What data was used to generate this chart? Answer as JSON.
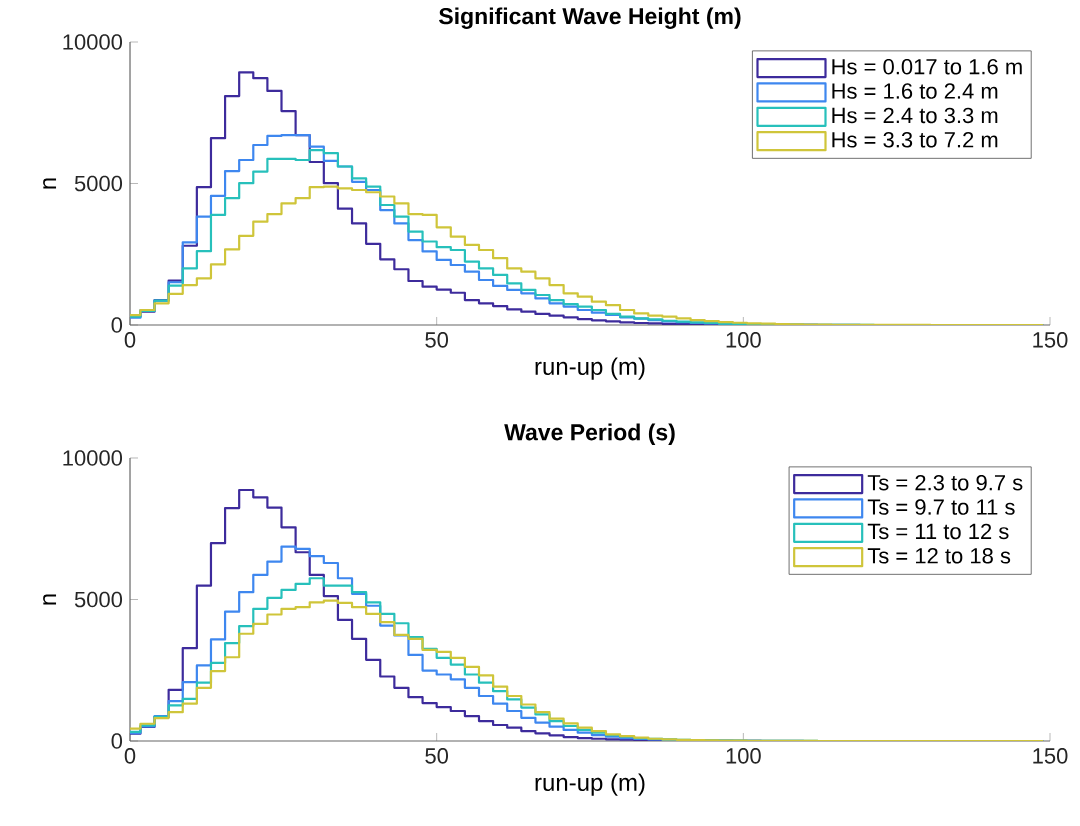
{
  "chart_data": [
    {
      "type": "histogram",
      "title": "Significant Wave Height (m)",
      "xlabel": "run-up (m)",
      "ylabel": "n",
      "bins": [
        -0.6,
        1.7,
        4,
        6.3,
        8.6,
        10.9,
        13.2,
        15.5,
        17.8,
        20.1,
        22.4,
        24.7,
        27,
        29.3,
        31.6,
        33.9,
        36.2,
        38.5,
        40.8,
        43.1,
        45.4,
        47.7,
        50,
        52.3,
        54.6,
        56.9,
        59.2,
        61.5,
        63.8,
        66.1,
        68.4,
        70.7,
        73,
        75.3,
        77.6,
        79.9,
        82.2,
        84.5,
        86.8,
        89.1,
        91.4,
        93.7,
        96,
        98.3,
        100.6,
        102.9,
        105.2,
        107.5,
        109.8,
        112.1,
        114.4,
        116.7,
        119,
        121.3,
        123.6,
        125.9,
        128.2,
        130.5,
        132.8,
        135.1,
        137.4,
        139.7,
        142,
        144.3,
        146.6,
        148.9
      ],
      "series": [
        {
          "name": "Hs = 0.017 to 1.6 m",
          "color": "#3d2b9c",
          "values": [
            295,
            470,
            880,
            1570,
            2800,
            4870,
            6600,
            8090,
            8930,
            8720,
            8270,
            7560,
            6710,
            5760,
            5010,
            4110,
            3590,
            2870,
            2320,
            1970,
            1555,
            1355,
            1250,
            1140,
            880,
            765,
            670,
            555,
            470,
            390,
            330,
            270,
            210,
            165,
            130,
            95,
            70,
            55,
            40,
            30,
            22,
            16,
            11,
            8,
            5,
            4,
            3,
            2,
            1,
            0,
            0,
            0,
            0,
            0,
            0,
            0,
            0,
            0,
            0,
            0,
            0,
            0,
            0,
            0,
            0
          ]
        },
        {
          "name": "Hs = 1.6 to 2.4 m",
          "color": "#3e87ef",
          "values": [
            260,
            530,
            860,
            1510,
            2920,
            3830,
            4560,
            5440,
            5830,
            6360,
            6680,
            6710,
            6710,
            6300,
            5800,
            5600,
            5060,
            4770,
            4060,
            3590,
            3000,
            2600,
            2300,
            2120,
            1885,
            1590,
            1380,
            1240,
            1120,
            940,
            765,
            650,
            530,
            435,
            355,
            270,
            225,
            175,
            130,
            100,
            75,
            55,
            40,
            30,
            22,
            16,
            11,
            8,
            5,
            3,
            2,
            1,
            0,
            0,
            0,
            0,
            0,
            0,
            0,
            0,
            0,
            0,
            0,
            0,
            0
          ]
        },
        {
          "name": "Hs = 2.4 to 3.3 m",
          "color": "#27c0bb",
          "values": [
            295,
            495,
            860,
            1390,
            2000,
            2610,
            3890,
            4480,
            5010,
            5420,
            5870,
            5870,
            5830,
            6180,
            6070,
            5600,
            5180,
            4890,
            4240,
            3830,
            3300,
            2950,
            2750,
            2650,
            2240,
            2000,
            1770,
            1470,
            1240,
            1060,
            880,
            740,
            650,
            530,
            390,
            295,
            235,
            200,
            150,
            120,
            90,
            70,
            50,
            38,
            28,
            20,
            14,
            10,
            7,
            5,
            3,
            2,
            1,
            0,
            0,
            0,
            0,
            0,
            0,
            0,
            0,
            0,
            0,
            0,
            0
          ]
        },
        {
          "name": "Hs = 3.3 to 7.2 m",
          "color": "#cfc53a",
          "values": [
            350,
            530,
            765,
            1100,
            1410,
            1650,
            2140,
            2670,
            3150,
            3650,
            3920,
            4300,
            4480,
            4870,
            4890,
            4830,
            4770,
            4690,
            4540,
            4300,
            3920,
            3890,
            3450,
            3120,
            2830,
            2650,
            2360,
            2000,
            1885,
            1650,
            1410,
            1120,
            1000,
            825,
            700,
            530,
            410,
            330,
            295,
            235,
            175,
            140,
            105,
            80,
            60,
            45,
            35,
            25,
            18,
            12,
            8,
            6,
            4,
            3,
            2,
            1,
            1,
            0,
            0,
            0,
            0,
            0,
            0,
            0,
            0
          ]
        }
      ],
      "xlim": [
        0,
        150
      ],
      "ylim": [
        0,
        10000
      ],
      "xticks": [
        0,
        50,
        100,
        150
      ],
      "yticks": [
        0,
        5000,
        10000
      ],
      "legend": "top right"
    },
    {
      "type": "histogram",
      "title": "Wave Period (s)",
      "xlabel": "run-up (m)",
      "ylabel": "n",
      "bins": [
        -0.6,
        1.7,
        4,
        6.3,
        8.6,
        10.9,
        13.2,
        15.5,
        17.8,
        20.1,
        22.4,
        24.7,
        27,
        29.3,
        31.6,
        33.9,
        36.2,
        38.5,
        40.8,
        43.1,
        45.4,
        47.7,
        50,
        52.3,
        54.6,
        56.9,
        59.2,
        61.5,
        63.8,
        66.1,
        68.4,
        70.7,
        73,
        75.3,
        77.6,
        79.9,
        82.2,
        84.5,
        86.8,
        89.1,
        91.4,
        93.7,
        96,
        98.3,
        100.6,
        102.9,
        105.2,
        107.5,
        109.8,
        112.1,
        114.4,
        116.7,
        119,
        121.3,
        123.6,
        125.9,
        128.2,
        130.5,
        132.8,
        135.1,
        137.4,
        139.7,
        142,
        144.3,
        146.6,
        148.9
      ],
      "series": [
        {
          "name": "Ts = 2.3 to 9.7 s",
          "color": "#3d2b9c",
          "values": [
            260,
            495,
            850,
            1810,
            3280,
            5490,
            6990,
            8230,
            8870,
            8610,
            8250,
            7550,
            6670,
            5870,
            5120,
            4280,
            3610,
            2870,
            2280,
            1880,
            1550,
            1340,
            1200,
            1060,
            880,
            705,
            565,
            470,
            350,
            270,
            200,
            140,
            105,
            80,
            60,
            45,
            32,
            23,
            16,
            11,
            8,
            5,
            3,
            2,
            1,
            0,
            0,
            0,
            0,
            0,
            0,
            0,
            0,
            0,
            0,
            0,
            0,
            0,
            0,
            0,
            0,
            0,
            0,
            0,
            0
          ]
        },
        {
          "name": "Ts = 9.7 to 11 s",
          "color": "#3e87ef",
          "values": [
            280,
            520,
            880,
            1410,
            2080,
            2670,
            3590,
            4570,
            5260,
            5870,
            6340,
            6870,
            6790,
            6530,
            6290,
            5750,
            5200,
            4780,
            4080,
            3730,
            3040,
            2490,
            2350,
            2180,
            1880,
            1590,
            1320,
            1060,
            820,
            650,
            505,
            390,
            295,
            210,
            150,
            105,
            75,
            55,
            40,
            28,
            20,
            14,
            10,
            7,
            5,
            3,
            2,
            1,
            0,
            0,
            0,
            0,
            0,
            0,
            0,
            0,
            0,
            0,
            0,
            0,
            0,
            0,
            0,
            0,
            0
          ]
        },
        {
          "name": "Ts = 11 to 12 s",
          "color": "#27c0bb",
          "values": [
            320,
            550,
            850,
            1260,
            1490,
            2060,
            2760,
            3460,
            4060,
            4670,
            5060,
            5340,
            5550,
            5750,
            5490,
            5490,
            5260,
            4900,
            4490,
            4160,
            3670,
            3260,
            2940,
            2700,
            2350,
            2060,
            1760,
            1470,
            1180,
            940,
            705,
            530,
            390,
            295,
            210,
            150,
            105,
            75,
            55,
            40,
            28,
            20,
            14,
            10,
            7,
            5,
            3,
            2,
            1,
            0,
            0,
            0,
            0,
            0,
            0,
            0,
            0,
            0,
            0,
            0,
            0,
            0,
            0,
            0,
            0
          ]
        },
        {
          "name": "Ts = 12 to 18 s",
          "color": "#cfc53a",
          "values": [
            440,
            610,
            810,
            1020,
            1320,
            1880,
            2470,
            2960,
            3790,
            4140,
            4470,
            4670,
            4730,
            4900,
            4960,
            4880,
            4730,
            4490,
            4200,
            3750,
            3610,
            3220,
            3150,
            2940,
            2620,
            2320,
            1920,
            1590,
            1290,
            1020,
            790,
            620,
            470,
            350,
            235,
            175,
            120,
            80,
            55,
            40,
            28,
            20,
            14,
            10,
            7,
            5,
            3,
            2,
            1,
            0,
            0,
            0,
            0,
            0,
            0,
            0,
            0,
            0,
            0,
            0,
            0,
            0,
            0,
            0,
            0
          ]
        }
      ],
      "xlim": [
        0,
        150
      ],
      "ylim": [
        0,
        10000
      ],
      "xticks": [
        0,
        50,
        100,
        150
      ],
      "yticks": [
        0,
        5000,
        10000
      ],
      "legend": "top right"
    }
  ]
}
